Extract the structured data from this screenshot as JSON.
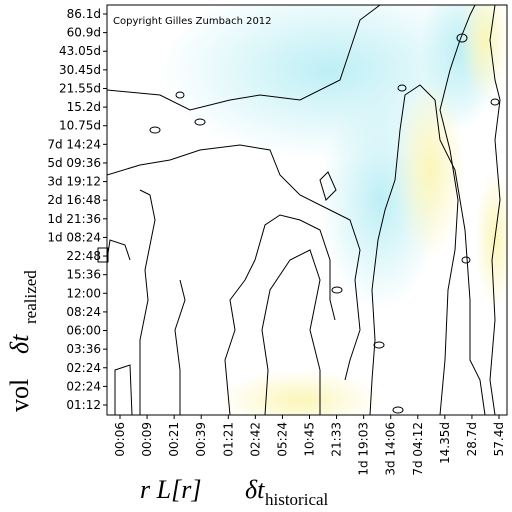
{
  "watermark": "Copyright Gilles Zumbach 2012",
  "y_axis": {
    "label": "vol",
    "symbol": "δt",
    "subscript": "realized",
    "ticks": [
      "86.1d",
      "60.9d",
      "43.05d",
      "30.45d",
      "21.55d",
      "15.2d",
      "10.75d",
      "7d 14:24",
      "5d 09:36",
      "3d 19:12",
      "2d 16:48",
      "1d 21:36",
      "1d 08:24",
      "22:48",
      "15:36",
      "12:00",
      "08:24",
      "06:00",
      "03:36",
      "02:24",
      "02:24",
      "01:12"
    ]
  },
  "x_axis": {
    "label": "r L[r]",
    "symbol": "δt",
    "subscript": "historical",
    "ticks": [
      "00:06",
      "00:09",
      "00:21",
      "00:39",
      "01:21",
      "02:42",
      "05:24",
      "10:45",
      "21:33",
      "1d 19:03",
      "3d 14:06",
      "7d 04:12",
      "14.35d",
      "28.7d",
      "57.4d"
    ]
  }
}
